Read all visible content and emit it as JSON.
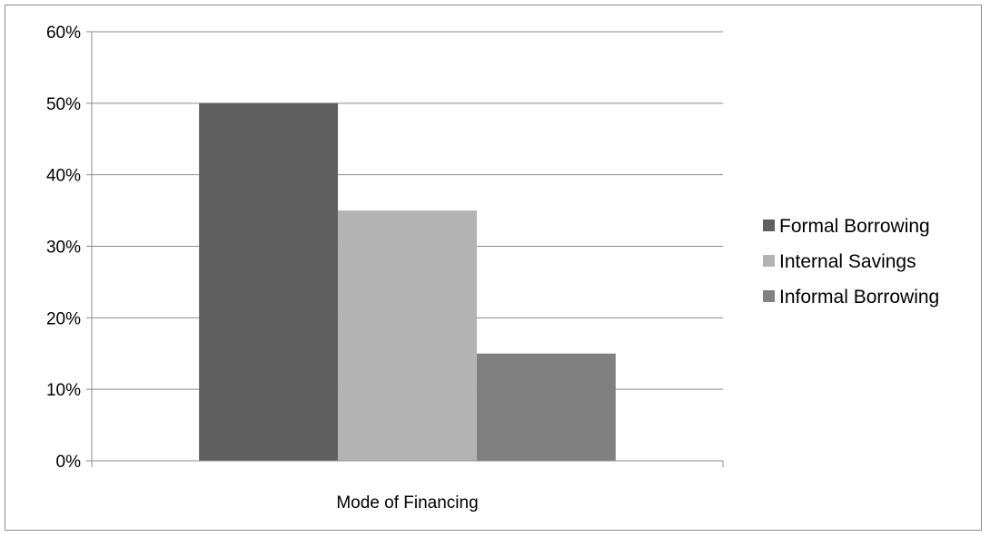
{
  "chart_data": {
    "type": "bar",
    "categories": [
      "Mode of Financing"
    ],
    "series": [
      {
        "name": "Formal Borrowing",
        "values": [
          0.5
        ],
        "color": "#5f5f5f"
      },
      {
        "name": "Internal Savings",
        "values": [
          0.35
        ],
        "color": "#b3b3b3"
      },
      {
        "name": "Informal Borrowing",
        "values": [
          0.15
        ],
        "color": "#808080"
      }
    ],
    "title": "",
    "xlabel": "",
    "ylabel": "",
    "ylim": [
      0,
      0.6
    ],
    "ytick_labels": [
      "0%",
      "10%",
      "20%",
      "30%",
      "40%",
      "50%",
      "60%"
    ],
    "grid": true,
    "legend_position": "right"
  }
}
